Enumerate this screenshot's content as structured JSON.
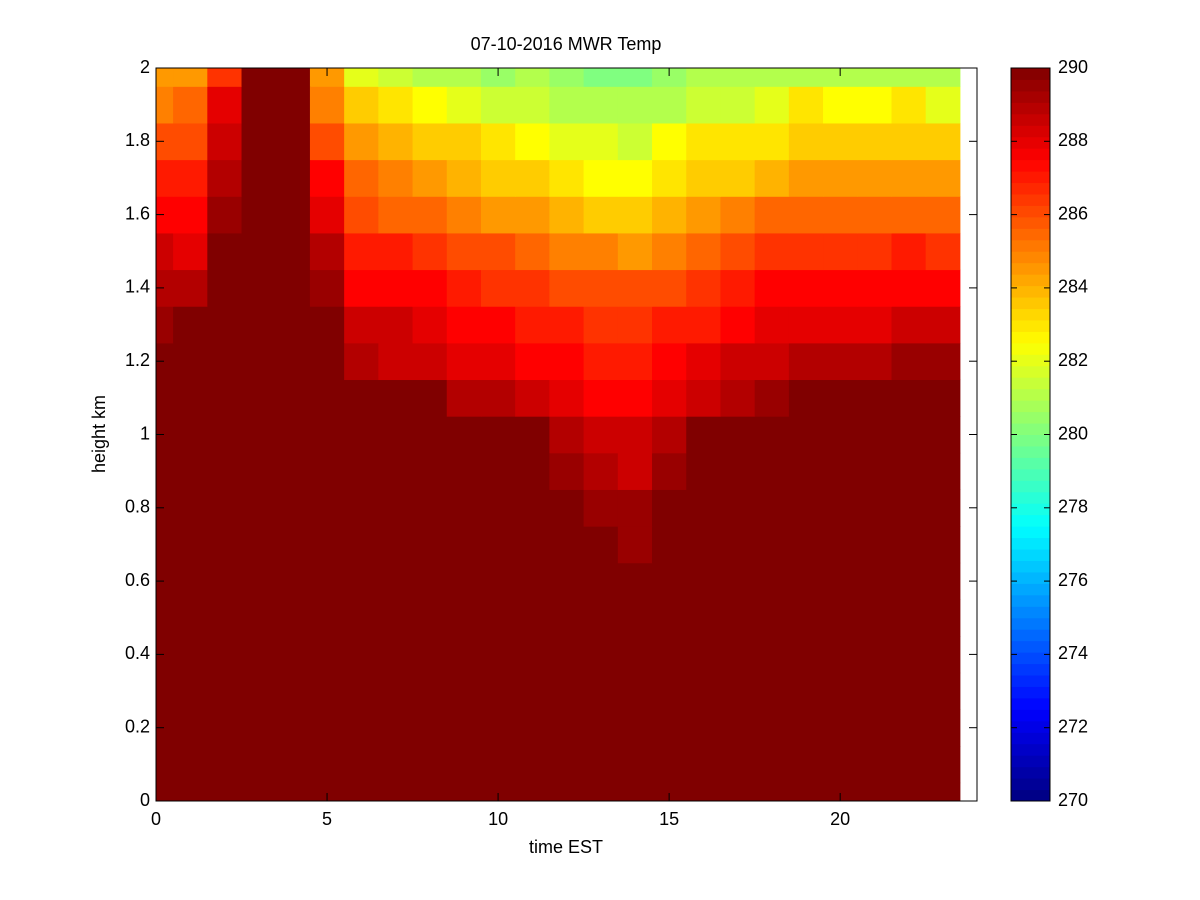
{
  "chart_data": {
    "type": "heatmap",
    "title": "07-10-2016 MWR Temp",
    "x_label": "time EST",
    "y_label": "height km",
    "x": [
      0,
      1,
      2,
      3,
      4,
      5,
      6,
      7,
      8,
      9,
      10,
      11,
      12,
      13,
      14,
      15,
      16,
      17,
      18,
      19,
      20,
      21,
      22,
      23
    ],
    "y": [
      0,
      0.1,
      0.2,
      0.3,
      0.4,
      0.5,
      0.6,
      0.7,
      0.8,
      0.9,
      1,
      1.1,
      1.2,
      1.3,
      1.4,
      1.5,
      1.6,
      1.7,
      1.8,
      1.9,
      2
    ],
    "z": [
      [
        290,
        290,
        290,
        290,
        290,
        290,
        290,
        290,
        290,
        290,
        290,
        290,
        290,
        290,
        290,
        290,
        290,
        290,
        290,
        290,
        290,
        290,
        290,
        290
      ],
      [
        290,
        290,
        290,
        290,
        290,
        290,
        290,
        290,
        290,
        290,
        290,
        290,
        290,
        290,
        290,
        290,
        290,
        290,
        290,
        290,
        290,
        290,
        290,
        290
      ],
      [
        290,
        290,
        290,
        290,
        290,
        290,
        290,
        290,
        290,
        290,
        290,
        290,
        290,
        290,
        290,
        290,
        290,
        290,
        290,
        290,
        290,
        290,
        290,
        290
      ],
      [
        290,
        290,
        290,
        290,
        290,
        290,
        290,
        290,
        290,
        290,
        290,
        290,
        290,
        290,
        290,
        290,
        290,
        290,
        290,
        290,
        290,
        290,
        290,
        290
      ],
      [
        290,
        290,
        290,
        290,
        290,
        290,
        290,
        290,
        290,
        290,
        290,
        290,
        290,
        290,
        290,
        290,
        290,
        290,
        290,
        290,
        290,
        290,
        290,
        290
      ],
      [
        290,
        290,
        290,
        290,
        290,
        290,
        290,
        290,
        290,
        290,
        290,
        290,
        290,
        290,
        290,
        290,
        290,
        290,
        290,
        290,
        290,
        290,
        290,
        290
      ],
      [
        290,
        290,
        290,
        290,
        290,
        290,
        290,
        290,
        290,
        290,
        290,
        290,
        290,
        290,
        290,
        290,
        290,
        290,
        290,
        290,
        290,
        290,
        290,
        290
      ],
      [
        290,
        290,
        290,
        290,
        290,
        290,
        290,
        290,
        290,
        290,
        290,
        290,
        290,
        290,
        289.5,
        290,
        290,
        290,
        290,
        290,
        290,
        290,
        290,
        290
      ],
      [
        290,
        290,
        290,
        290,
        290,
        290,
        290,
        290,
        290,
        290,
        290,
        290,
        290,
        289.5,
        289.5,
        290,
        290,
        290,
        290,
        290,
        290,
        290,
        290,
        290
      ],
      [
        290,
        290,
        290,
        290,
        290,
        290,
        290,
        290,
        290,
        290,
        290,
        290,
        289.5,
        289,
        288.5,
        289.5,
        290,
        290,
        290,
        290,
        290,
        290,
        290,
        290
      ],
      [
        290,
        290,
        290,
        290,
        290,
        290,
        290,
        290,
        290,
        290,
        290,
        290,
        289,
        288.5,
        288.5,
        289,
        290,
        290,
        290,
        290,
        290,
        290,
        290,
        290
      ],
      [
        290,
        290,
        290,
        290,
        290,
        290,
        290,
        290,
        290,
        289,
        289,
        288.5,
        288,
        287.5,
        287.5,
        288,
        288.5,
        289,
        289.5,
        290,
        290,
        290,
        290,
        290
      ],
      [
        290,
        290,
        290,
        290,
        290,
        290,
        289,
        288.5,
        288.5,
        288,
        288,
        287.5,
        287.5,
        287,
        287,
        287.5,
        288,
        288.5,
        288.5,
        289,
        289,
        289,
        289.5,
        289.5
      ],
      [
        289.5,
        290,
        290,
        290,
        290,
        290,
        288.5,
        288.5,
        288,
        287.5,
        287.5,
        287,
        287,
        286.5,
        286.5,
        287,
        287,
        287.5,
        288,
        288,
        288,
        288,
        288.5,
        288.5
      ],
      [
        289,
        289,
        290,
        290,
        290,
        289.5,
        287.5,
        287.5,
        287.5,
        287,
        286.5,
        286.5,
        286,
        286,
        286,
        286,
        286.5,
        287,
        287.5,
        287.5,
        287.5,
        287.5,
        287.5,
        287.5
      ],
      [
        288.5,
        288,
        290,
        290,
        290,
        289,
        287,
        287,
        286.5,
        286,
        286,
        285.5,
        285,
        285,
        284.5,
        285,
        285.5,
        286,
        286.5,
        286.5,
        286.5,
        286.5,
        287,
        286.5
      ],
      [
        287.5,
        287.5,
        289.5,
        290,
        290,
        288,
        286,
        285.5,
        285.5,
        285,
        284.5,
        284.5,
        284,
        283.5,
        283.5,
        284,
        284.5,
        285,
        285.5,
        285.5,
        285.5,
        285.5,
        285.5,
        285.5
      ],
      [
        287,
        287,
        289,
        290,
        290,
        287.5,
        285.5,
        285,
        284.5,
        284,
        283.5,
        283.5,
        283,
        282.5,
        282.5,
        283,
        283.5,
        283.5,
        284,
        284.5,
        284.5,
        284.5,
        284.5,
        284.5
      ],
      [
        286,
        286,
        288.5,
        290,
        290,
        286,
        284.5,
        284,
        283.5,
        283.5,
        283,
        282.5,
        282,
        282,
        281.5,
        282.5,
        283,
        283,
        283,
        283.5,
        283.5,
        283.5,
        283.5,
        283.5
      ],
      [
        285,
        285.5,
        288,
        290,
        290,
        285,
        283.5,
        283,
        282.5,
        282,
        281.5,
        281.5,
        281,
        281,
        281,
        281,
        281.5,
        281.5,
        282,
        283,
        282.5,
        282.5,
        283,
        282
      ],
      [
        284.5,
        284.5,
        286.5,
        290,
        290,
        284.5,
        282,
        281.5,
        281,
        281,
        280.5,
        281,
        280.5,
        280,
        280,
        280.5,
        281,
        281,
        281,
        281,
        281,
        281,
        281,
        281
      ]
    ],
    "xlim": [
      0,
      24
    ],
    "xticks": [
      0,
      5,
      10,
      15,
      20
    ],
    "ylim": [
      0,
      2
    ],
    "yticks": [
      0,
      0.2,
      0.4,
      0.6,
      0.8,
      1,
      1.2,
      1.4,
      1.6,
      1.8,
      2
    ],
    "clim": [
      270,
      290
    ],
    "cticks": [
      270,
      272,
      274,
      276,
      278,
      280,
      282,
      284,
      286,
      288,
      290
    ],
    "colormap": "jet"
  }
}
